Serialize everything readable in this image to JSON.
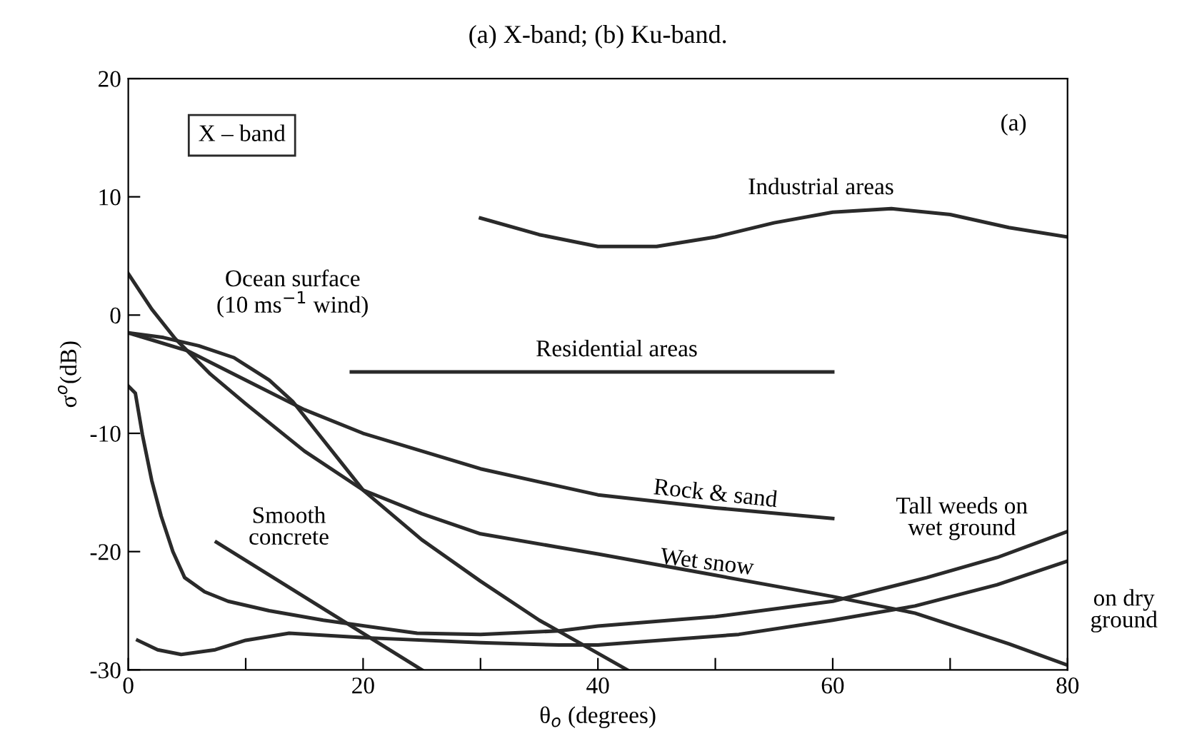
{
  "chart_data": {
    "type": "line",
    "title": "(a) X-band; (b) Ku-band.",
    "xlabel": "θ$_{o}$ (degrees)",
    "ylabel": "σ$^{o}$(dB)",
    "xlim": [
      0,
      80
    ],
    "ylim": [
      -30,
      20
    ],
    "xticks": [
      0,
      {
        "value": 10,
        "label": null
      },
      20,
      {
        "value": 30,
        "label": null
      },
      40,
      {
        "value": 50,
        "label": null
      },
      60,
      {
        "value": 70,
        "label": null
      },
      80
    ],
    "yticks": [
      -30,
      -20,
      -10,
      0,
      10,
      20
    ],
    "grid": false,
    "legend": false,
    "marker": "none",
    "line_style": "solid",
    "series": [
      {
        "name": "Industrial areas",
        "color": "#2a2a2a",
        "x": [
          30,
          35,
          40,
          45,
          50,
          55,
          60,
          65,
          70,
          75,
          80
        ],
        "values": [
          8.2,
          6.8,
          5.8,
          5.8,
          6.6,
          7.8,
          8.7,
          9.0,
          8.5,
          7.4,
          6.6
        ]
      },
      {
        "name": "Residential areas",
        "color": "#2a2a2a",
        "x": [
          19,
          60
        ],
        "values": [
          -4.8,
          -4.8
        ]
      },
      {
        "name": "Rock & sand",
        "color": "#2a2a2a",
        "x": [
          0,
          5,
          10,
          15,
          20,
          30,
          40,
          50,
          60
        ],
        "values": [
          -1.5,
          -3,
          -5.5,
          -8,
          -10,
          -13,
          -15.2,
          -16.3,
          -17.2
        ]
      },
      {
        "name": "Wet snow",
        "color": "#2a2a2a",
        "x": [
          0,
          2,
          4,
          7,
          10,
          15,
          20,
          25,
          30,
          40,
          50,
          60,
          67,
          75,
          80
        ],
        "values": [
          3.5,
          0.5,
          -2,
          -5,
          -7.5,
          -11.5,
          -14.8,
          -16.8,
          -18.5,
          -20.2,
          -22,
          -23.8,
          -25.2,
          -27.8,
          -29.6
        ]
      },
      {
        "name": "Ocean surface\n(10 ms$^{−1}$ wind)",
        "color": "#2a2a2a",
        "x": [
          0,
          3,
          6,
          9,
          12,
          14,
          16,
          18,
          20,
          25,
          30,
          35,
          40,
          42.5
        ],
        "values": [
          -1.5,
          -1.9,
          -2.6,
          -3.6,
          -5.5,
          -7.3,
          -9.8,
          -12.3,
          -14.8,
          -19,
          -22.5,
          -25.8,
          -28.6,
          -30
        ]
      },
      {
        "name": "Smooth\nconcrete",
        "color": "#2a2a2a",
        "x": [
          7.5,
          25
        ],
        "values": [
          -19.2,
          -30
        ]
      },
      {
        "name": "Tall weeds on\nwet ground",
        "color": "#2a2a2a",
        "x": [
          0,
          0.6,
          1.2,
          2,
          2.8,
          3.8,
          4.8,
          6.5,
          8.5,
          12,
          16.6,
          24.6,
          30,
          36.7,
          40,
          50,
          60,
          68,
          74,
          80
        ],
        "values": [
          -6,
          -6.6,
          -10.1,
          -14,
          -17,
          -20,
          -22.2,
          -23.4,
          -24.2,
          -25,
          -25.8,
          -26.9,
          -27,
          -26.7,
          -26.3,
          -25.5,
          -24.2,
          -22.2,
          -20.5,
          -18.3
        ]
      },
      {
        "name": "on dry\nground",
        "color": "#2a2a2a",
        "x": [
          0.8,
          2.5,
          4.5,
          7.4,
          10,
          13.7,
          20.6,
          30,
          36.7,
          40,
          52,
          60,
          67,
          74,
          80
        ],
        "values": [
          -27.5,
          -28.3,
          -28.7,
          -28.3,
          -27.5,
          -26.9,
          -27.3,
          -27.7,
          -27.9,
          -27.9,
          -27,
          -25.8,
          -24.6,
          -22.8,
          -20.8
        ]
      }
    ],
    "annotations": [
      "X – band",
      "(a)"
    ]
  }
}
